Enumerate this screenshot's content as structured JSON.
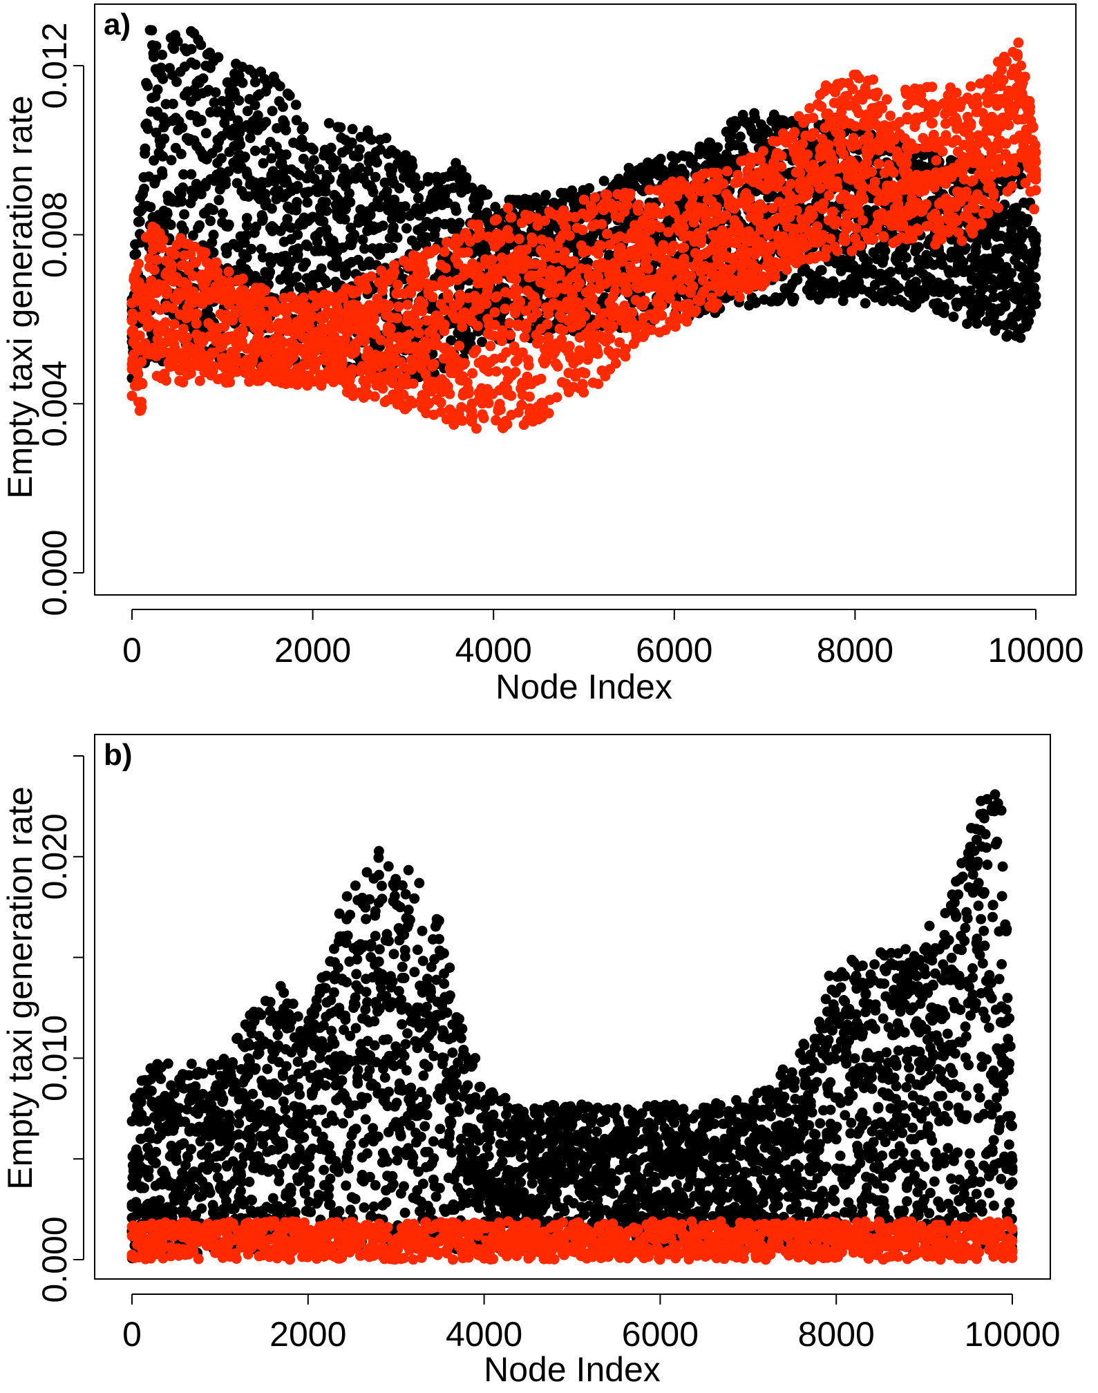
{
  "colors": {
    "black_series": "#000000",
    "red_series": "#ff2a00",
    "frame": "#000000"
  },
  "chart_data": [
    {
      "type": "scatter",
      "panel_label": "a)",
      "xlabel": "Node Index",
      "ylabel": "Empty taxi generation rate",
      "xlim": [
        0,
        10000
      ],
      "ylim": [
        0,
        0.013
      ],
      "x_ticks": [
        0,
        2000,
        4000,
        6000,
        8000,
        10000
      ],
      "x_tick_labels": [
        "0",
        "2000",
        "4000",
        "6000",
        "8000",
        "10000"
      ],
      "y_ticks": [
        0,
        0.004,
        0.008,
        0.012
      ],
      "y_tick_labels": [
        "0.000",
        "0.004",
        "0.008",
        "0.012"
      ],
      "grid": false,
      "series": [
        {
          "color": "#000000",
          "points_per_x": 14,
          "band": {
            "x": [
              0,
              200,
              400,
              800,
              1200,
              1600,
              2000,
              2400,
              2800,
              3200,
              3600,
              3800,
              4000,
              4400,
              4800,
              5200,
              5600,
              6000,
              6400,
              6800,
              7200,
              7600,
              8000,
              8400,
              8800,
              9200,
              9600,
              9800,
              10000
            ],
            "low": [
              0.0045,
              0.005,
              0.005,
              0.0049,
              0.0049,
              0.0048,
              0.0048,
              0.0047,
              0.0046,
              0.0046,
              0.0048,
              0.0052,
              0.0055,
              0.0055,
              0.0056,
              0.0057,
              0.0058,
              0.006,
              0.0061,
              0.0063,
              0.0064,
              0.0064,
              0.0064,
              0.0063,
              0.0062,
              0.0059,
              0.0057,
              0.0054,
              0.0062
            ],
            "high": [
              0.0065,
              0.0129,
              0.013,
              0.0127,
              0.012,
              0.0118,
              0.0108,
              0.0105,
              0.0105,
              0.0095,
              0.0097,
              0.0093,
              0.0088,
              0.0089,
              0.009,
              0.0093,
              0.0097,
              0.0099,
              0.0102,
              0.011,
              0.0108,
              0.0107,
              0.0105,
              0.0102,
              0.01,
              0.0098,
              0.0098,
              0.0097,
              0.0082
            ]
          }
        },
        {
          "color": "#ff2a00",
          "points_per_x": 11,
          "band": {
            "x": [
              0,
              100,
              300,
              800,
              1200,
              1600,
              2000,
              2400,
              2800,
              3200,
              3600,
              4000,
              4400,
              4800,
              5200,
              5600,
              6000,
              6400,
              6800,
              7200,
              7600,
              8000,
              8400,
              8800,
              9200,
              9600,
              9800,
              10000
            ],
            "low": [
              0.004,
              0.0037,
              0.0045,
              0.0045,
              0.0045,
              0.0045,
              0.0044,
              0.0042,
              0.004,
              0.0037,
              0.0034,
              0.0033,
              0.0035,
              0.004,
              0.0045,
              0.0055,
              0.0058,
              0.0062,
              0.0066,
              0.007,
              0.0074,
              0.0076,
              0.0078,
              0.0077,
              0.0078,
              0.0085,
              0.0095,
              0.0085
            ],
            "high": [
              0.0065,
              0.0082,
              0.0082,
              0.0076,
              0.007,
              0.0066,
              0.0066,
              0.0068,
              0.0072,
              0.0076,
              0.008,
              0.0087,
              0.0086,
              0.0087,
              0.009,
              0.0091,
              0.0093,
              0.0095,
              0.0098,
              0.0104,
              0.0115,
              0.0118,
              0.0116,
              0.0115,
              0.0115,
              0.0122,
              0.0128,
              0.0103
            ]
          }
        }
      ]
    },
    {
      "type": "scatter",
      "panel_label": "b)",
      "xlabel": "Node Index",
      "ylabel": "Empty taxi generation rate",
      "xlim": [
        0,
        10000
      ],
      "ylim": [
        0,
        0.0255
      ],
      "x_ticks": [
        0,
        2000,
        4000,
        6000,
        8000,
        10000
      ],
      "x_tick_labels": [
        "0",
        "2000",
        "4000",
        "6000",
        "8000",
        "10000"
      ],
      "y_ticks": [
        0,
        0.005,
        0.01,
        0.015,
        0.02,
        0.025
      ],
      "y_tick_labels": [
        "0.000",
        "",
        "0.010",
        "",
        "0.020",
        ""
      ],
      "grid": false,
      "series": [
        {
          "color": "#000000",
          "points_per_x": 14,
          "band": {
            "x": [
              0,
              200,
              600,
              1000,
              1400,
              1700,
              2000,
              2400,
              2800,
              3000,
              3400,
              3700,
              4000,
              4400,
              4800,
              5200,
              5600,
              6000,
              6400,
              6800,
              7200,
              7600,
              8000,
              8400,
              8800,
              9200,
              9500,
              9700,
              9900,
              10000
            ],
            "low": [
              0.0,
              0.0003,
              0.0003,
              0.0003,
              0.0004,
              0.0004,
              0.0004,
              0.0005,
              0.0005,
              0.0005,
              0.0005,
              0.0005,
              0.0005,
              0.0005,
              0.0005,
              0.0005,
              0.0005,
              0.0005,
              0.0005,
              0.0005,
              0.0005,
              0.0005,
              0.0005,
              0.0005,
              0.0005,
              0.0005,
              0.0005,
              0.0005,
              0.0005,
              0.0003
            ],
            "high": [
              0.008,
              0.0098,
              0.0097,
              0.0098,
              0.0125,
              0.0137,
              0.012,
              0.018,
              0.0203,
              0.0202,
              0.0185,
              0.0125,
              0.0085,
              0.0078,
              0.0077,
              0.0077,
              0.0077,
              0.0078,
              0.0076,
              0.0079,
              0.0085,
              0.0105,
              0.015,
              0.0151,
              0.0158,
              0.0175,
              0.022,
              0.0243,
              0.0222,
              0.008
            ]
          }
        },
        {
          "color": "#ff2a00",
          "points_per_x": 5,
          "band": {
            "x": [
              0,
              10000
            ],
            "low": [
              0.0,
              0.0
            ],
            "high": [
              0.0019,
              0.0019
            ]
          }
        }
      ]
    }
  ]
}
